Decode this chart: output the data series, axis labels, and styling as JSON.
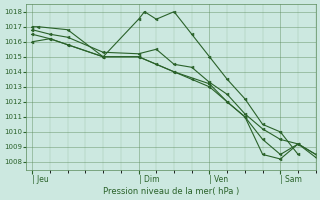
{
  "bg_color": "#cce8e0",
  "grid_color": "#5a8a5a",
  "line_color": "#2a622a",
  "marker_color": "#2a622a",
  "xlabel": "Pression niveau de la mer( hPa )",
  "ylim": [
    1007.5,
    1018.5
  ],
  "yticks": [
    1008,
    1009,
    1010,
    1011,
    1012,
    1013,
    1014,
    1015,
    1016,
    1017,
    1018
  ],
  "xtick_labels": [
    "| Jeu",
    "| Dim",
    "| Ven",
    "| Sam"
  ],
  "xtick_positions": [
    0,
    36,
    60,
    84
  ],
  "xlim": [
    -2,
    96
  ],
  "series1": {
    "x": [
      0,
      2,
      12,
      24,
      36,
      38,
      42,
      48,
      54,
      60,
      66,
      72,
      78,
      84,
      90
    ],
    "y": [
      1017.0,
      1017.0,
      1016.8,
      1015.0,
      1017.5,
      1018.0,
      1017.5,
      1018.0,
      1016.5,
      1015.0,
      1013.5,
      1012.2,
      1010.5,
      1010.0,
      1008.5
    ]
  },
  "series2": {
    "x": [
      0,
      6,
      12,
      24,
      36,
      42,
      48,
      54,
      60,
      66,
      72,
      78,
      84,
      90,
      96
    ],
    "y": [
      1016.8,
      1016.5,
      1016.3,
      1015.3,
      1015.2,
      1015.5,
      1014.5,
      1014.3,
      1013.3,
      1012.5,
      1011.2,
      1010.2,
      1009.5,
      1009.2,
      1008.5
    ]
  },
  "series3": {
    "x": [
      0,
      6,
      12,
      24,
      36,
      42,
      48,
      54,
      60,
      66,
      72,
      78,
      84,
      90,
      96
    ],
    "y": [
      1016.5,
      1016.2,
      1015.8,
      1015.0,
      1015.0,
      1014.5,
      1014.0,
      1013.5,
      1013.0,
      1012.0,
      1011.0,
      1009.5,
      1008.5,
      1009.2,
      1008.3
    ]
  },
  "series4": {
    "x": [
      0,
      6,
      12,
      24,
      36,
      48,
      60,
      66,
      72,
      78,
      84,
      90,
      96
    ],
    "y": [
      1016.0,
      1016.2,
      1015.8,
      1015.0,
      1015.0,
      1014.0,
      1013.2,
      1012.0,
      1011.0,
      1008.5,
      1008.2,
      1009.2,
      1008.5
    ]
  }
}
